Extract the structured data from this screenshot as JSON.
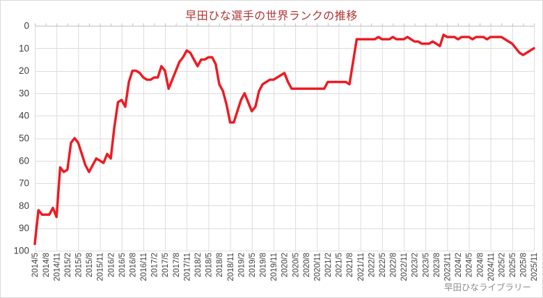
{
  "title": "早田ひな選手の世界ランクの推移",
  "watermark": "早田ひなライブラリー",
  "colors": {
    "line": "#ec1c24",
    "title_text": "#b03434",
    "axis_text": "#404040",
    "gridline": "#dcdcdc",
    "axis_line": "#c0c0c0",
    "chart_border": "#d9d9d9"
  },
  "chart_data": {
    "type": "line",
    "title": "早田ひな選手の世界ランクの推移",
    "xlabel": "",
    "ylabel": "",
    "legend": "none",
    "y_axis_reversed": true,
    "ylim": [
      0,
      100
    ],
    "ytick_step": 10,
    "xtick_label_every": 3,
    "x_gridline_every": 6,
    "annotation": "早田ひなライブラリー",
    "x": [
      "2014/5",
      "2014/6",
      "2014/7",
      "2014/8",
      "2014/9",
      "2014/10",
      "2014/11",
      "2014/12",
      "2015/1",
      "2015/2",
      "2015/3",
      "2015/4",
      "2015/5",
      "2015/6",
      "2015/7",
      "2015/8",
      "2015/9",
      "2015/10",
      "2015/11",
      "2015/12",
      "2016/1",
      "2016/2",
      "2016/3",
      "2016/4",
      "2016/5",
      "2016/6",
      "2016/7",
      "2016/8",
      "2016/9",
      "2016/10",
      "2016/11",
      "2016/12",
      "2017/1",
      "2017/2",
      "2017/3",
      "2017/4",
      "2017/5",
      "2017/6",
      "2017/7",
      "2017/8",
      "2017/9",
      "2017/10",
      "2017/11",
      "2017/12",
      "2018/1",
      "2018/2",
      "2018/3",
      "2018/4",
      "2018/5",
      "2018/6",
      "2018/7",
      "2018/8",
      "2018/9",
      "2018/10",
      "2018/11",
      "2018/12",
      "2019/1",
      "2019/2",
      "2019/3",
      "2019/4",
      "2019/5",
      "2019/6",
      "2019/7",
      "2019/8",
      "2019/9",
      "2019/10",
      "2019/11",
      "2019/12",
      "2020/1",
      "2020/2",
      "2020/3",
      "2020/4",
      "2020/5",
      "2020/6",
      "2020/7",
      "2020/8",
      "2020/9",
      "2020/10",
      "2020/11",
      "2020/12",
      "2021/1",
      "2021/2",
      "2021/3",
      "2021/4",
      "2021/5",
      "2021/6",
      "2021/7",
      "2021/8",
      "2021/9",
      "2021/10",
      "2021/11",
      "2021/12",
      "2022/1",
      "2022/2",
      "2022/3",
      "2022/4",
      "2022/5",
      "2022/6",
      "2022/7",
      "2022/8",
      "2022/9",
      "2022/10",
      "2022/11",
      "2022/12",
      "2023/1",
      "2023/2",
      "2023/3",
      "2023/4",
      "2023/5",
      "2023/6",
      "2023/7",
      "2023/8",
      "2023/9",
      "2023/10",
      "2023/11",
      "2023/12",
      "2024/1",
      "2024/2",
      "2024/3",
      "2024/4",
      "2024/5",
      "2024/6",
      "2024/7",
      "2024/8",
      "2024/9",
      "2024/10",
      "2024/11",
      "2024/12",
      "2025/1",
      "2025/2",
      "2025/3",
      "2025/4",
      "2025/5",
      "2025/6",
      "2025/7",
      "2025/8",
      "2025/9",
      "2025/10",
      "2025/11"
    ],
    "series": [
      {
        "name": "世界ランク",
        "values": [
          97,
          82,
          84,
          84,
          84,
          81,
          85,
          63,
          65,
          64,
          52,
          50,
          52,
          57,
          62,
          65,
          62,
          59,
          60,
          61,
          57,
          59,
          45,
          34,
          33,
          36,
          25,
          20,
          20,
          21,
          23,
          24,
          24,
          23,
          23,
          18,
          20,
          28,
          24,
          20,
          16,
          14,
          11,
          12,
          15,
          18,
          15,
          15,
          14,
          14,
          17,
          26,
          29,
          35,
          43,
          43,
          38,
          33,
          30,
          34,
          38,
          36,
          29,
          26,
          25,
          24,
          24,
          23,
          22,
          21,
          25,
          28,
          28,
          28,
          28,
          28,
          28,
          28,
          28,
          28,
          28,
          25,
          25,
          25,
          25,
          25,
          25,
          26,
          16,
          6,
          6,
          6,
          6,
          6,
          6,
          5,
          6,
          6,
          6,
          5,
          6,
          6,
          6,
          5,
          6,
          7,
          7,
          8,
          8,
          8,
          7,
          8,
          9,
          4,
          5,
          5,
          5,
          6,
          5,
          5,
          5,
          6,
          5,
          5,
          5,
          6,
          5,
          5,
          5,
          5,
          6,
          7,
          8,
          10,
          12,
          13,
          12,
          11,
          10
        ]
      }
    ]
  }
}
